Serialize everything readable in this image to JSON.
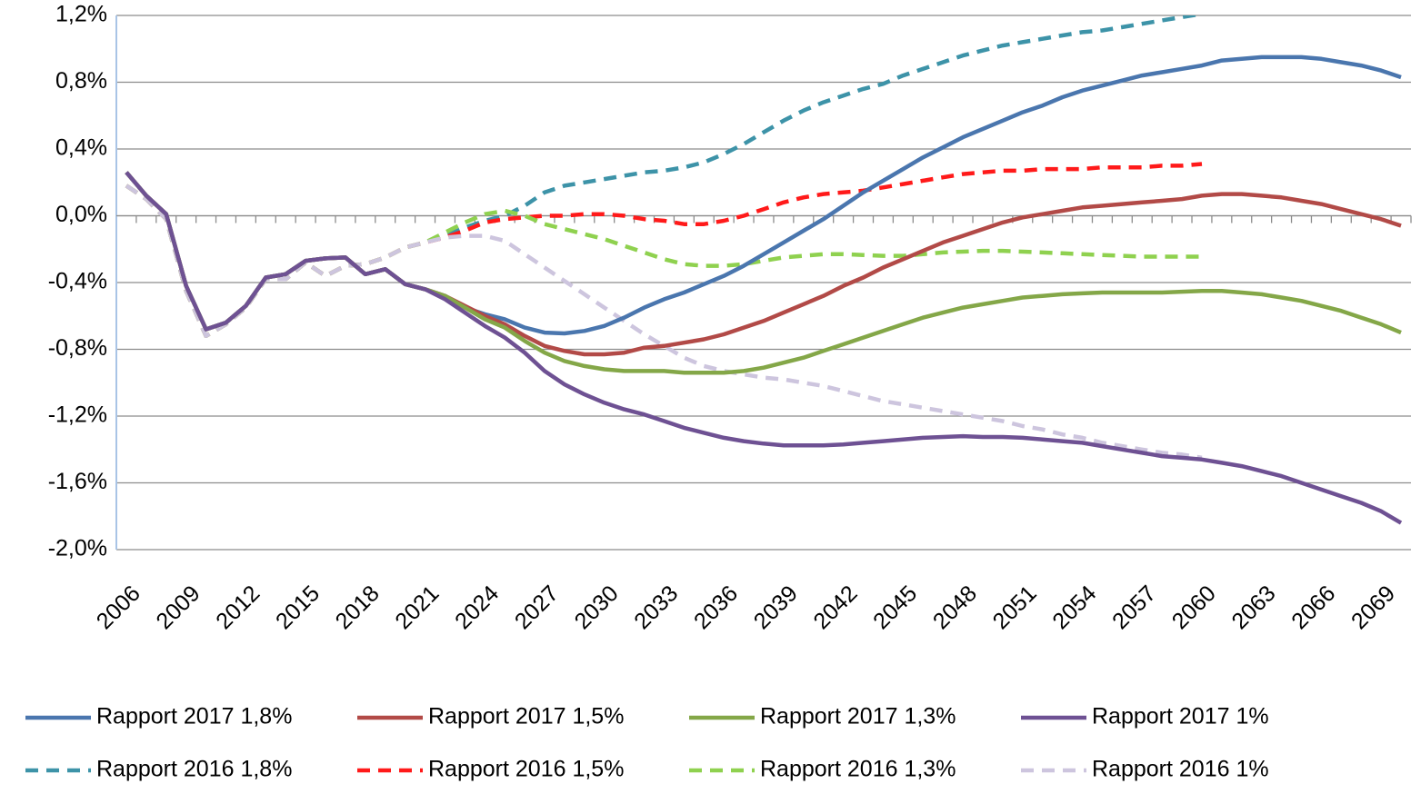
{
  "chart_data": {
    "type": "line",
    "x": [
      2006,
      2007,
      2008,
      2009,
      2010,
      2011,
      2012,
      2013,
      2014,
      2015,
      2016,
      2017,
      2018,
      2019,
      2020,
      2021,
      2022,
      2023,
      2024,
      2025,
      2026,
      2027,
      2028,
      2029,
      2030,
      2031,
      2032,
      2033,
      2034,
      2035,
      2036,
      2037,
      2038,
      2039,
      2040,
      2041,
      2042,
      2043,
      2044,
      2045,
      2046,
      2047,
      2048,
      2049,
      2050,
      2051,
      2052,
      2053,
      2054,
      2055,
      2056,
      2057,
      2058,
      2059,
      2060,
      2061,
      2062,
      2063,
      2064,
      2065,
      2066,
      2067,
      2068,
      2069,
      2070
    ],
    "xlim": [
      2005.5,
      2070.5
    ],
    "xticks": [
      2006,
      2009,
      2012,
      2015,
      2018,
      2021,
      2024,
      2027,
      2030,
      2033,
      2036,
      2039,
      2042,
      2045,
      2048,
      2051,
      2054,
      2057,
      2060,
      2063,
      2066,
      2069
    ],
    "ylim": [
      -2.0,
      1.2
    ],
    "yticks": [
      {
        "value": -2.0,
        "label": "-2,0%"
      },
      {
        "value": -1.6,
        "label": "-1,6%"
      },
      {
        "value": -1.2,
        "label": "-1,2%"
      },
      {
        "value": -0.8,
        "label": "-0,8%"
      },
      {
        "value": -0.4,
        "label": "-0,4%"
      },
      {
        "value": 0.0,
        "label": "0,0%"
      },
      {
        "value": 0.4,
        "label": "0,4%"
      },
      {
        "value": 0.8,
        "label": "0,8%"
      },
      {
        "value": 1.2,
        "label": "1,2%"
      }
    ],
    "grid": true,
    "series": [
      {
        "name": "Rapport 2017 1,8%",
        "color": "#4a76ae",
        "dashed": false,
        "values": [
          0.26,
          0.12,
          0.01,
          -0.42,
          -0.68,
          -0.64,
          -0.54,
          -0.37,
          -0.35,
          -0.27,
          -0.255,
          -0.25,
          -0.35,
          -0.32,
          -0.41,
          -0.44,
          -0.48,
          -0.55,
          -0.59,
          -0.62,
          -0.67,
          -0.7,
          -0.705,
          -0.69,
          -0.66,
          -0.61,
          -0.55,
          -0.5,
          -0.46,
          -0.41,
          -0.36,
          -0.3,
          -0.23,
          -0.16,
          -0.09,
          -0.02,
          0.06,
          0.14,
          0.21,
          0.28,
          0.35,
          0.41,
          0.47,
          0.52,
          0.57,
          0.62,
          0.66,
          0.71,
          0.75,
          0.78,
          0.81,
          0.84,
          0.86,
          0.88,
          0.9,
          0.93,
          0.94,
          0.95,
          0.95,
          0.95,
          0.94,
          0.92,
          0.9,
          0.87,
          0.83
        ]
      },
      {
        "name": "Rapport 2017 1,5%",
        "color": "#b24a47",
        "dashed": false,
        "values": [
          0.26,
          0.12,
          0.01,
          -0.42,
          -0.68,
          -0.64,
          -0.54,
          -0.37,
          -0.35,
          -0.27,
          -0.255,
          -0.25,
          -0.35,
          -0.32,
          -0.41,
          -0.44,
          -0.48,
          -0.54,
          -0.6,
          -0.65,
          -0.72,
          -0.78,
          -0.81,
          -0.83,
          -0.83,
          -0.82,
          -0.79,
          -0.78,
          -0.76,
          -0.74,
          -0.71,
          -0.67,
          -0.63,
          -0.58,
          -0.53,
          -0.48,
          -0.42,
          -0.37,
          -0.31,
          -0.26,
          -0.21,
          -0.16,
          -0.12,
          -0.08,
          -0.04,
          -0.01,
          0.01,
          0.03,
          0.05,
          0.06,
          0.07,
          0.08,
          0.09,
          0.1,
          0.12,
          0.13,
          0.13,
          0.12,
          0.11,
          0.09,
          0.07,
          0.04,
          0.01,
          -0.02,
          -0.06
        ]
      },
      {
        "name": "Rapport 2017 1,3%",
        "color": "#84a748",
        "dashed": false,
        "values": [
          0.26,
          0.12,
          0.01,
          -0.42,
          -0.68,
          -0.64,
          -0.54,
          -0.37,
          -0.35,
          -0.27,
          -0.255,
          -0.25,
          -0.35,
          -0.32,
          -0.41,
          -0.44,
          -0.48,
          -0.55,
          -0.62,
          -0.67,
          -0.75,
          -0.82,
          -0.87,
          -0.9,
          -0.92,
          -0.93,
          -0.93,
          -0.93,
          -0.94,
          -0.94,
          -0.94,
          -0.93,
          -0.91,
          -0.88,
          -0.85,
          -0.81,
          -0.77,
          -0.73,
          -0.69,
          -0.65,
          -0.61,
          -0.58,
          -0.55,
          -0.53,
          -0.51,
          -0.49,
          -0.48,
          -0.47,
          -0.465,
          -0.46,
          -0.46,
          -0.46,
          -0.46,
          -0.455,
          -0.45,
          -0.45,
          -0.46,
          -0.47,
          -0.49,
          -0.51,
          -0.54,
          -0.57,
          -0.61,
          -0.65,
          -0.7
        ]
      },
      {
        "name": "Rapport 2017 1%",
        "color": "#6e5193",
        "dashed": false,
        "values": [
          0.26,
          0.12,
          0.01,
          -0.42,
          -0.68,
          -0.64,
          -0.54,
          -0.37,
          -0.35,
          -0.27,
          -0.255,
          -0.25,
          -0.35,
          -0.32,
          -0.41,
          -0.44,
          -0.5,
          -0.58,
          -0.66,
          -0.73,
          -0.82,
          -0.93,
          -1.01,
          -1.07,
          -1.12,
          -1.16,
          -1.19,
          -1.23,
          -1.27,
          -1.3,
          -1.33,
          -1.35,
          -1.365,
          -1.375,
          -1.375,
          -1.375,
          -1.37,
          -1.36,
          -1.35,
          -1.34,
          -1.33,
          -1.325,
          -1.32,
          -1.325,
          -1.325,
          -1.33,
          -1.34,
          -1.35,
          -1.36,
          -1.38,
          -1.4,
          -1.42,
          -1.44,
          -1.45,
          -1.46,
          -1.48,
          -1.5,
          -1.53,
          -1.56,
          -1.6,
          -1.64,
          -1.68,
          -1.72,
          -1.77,
          -1.84
        ]
      },
      {
        "name": "Rapport 2016 1,8%",
        "color": "#3d93a8",
        "dashed": true,
        "values": [
          0.18,
          0.1,
          -0.02,
          -0.45,
          -0.72,
          -0.65,
          -0.55,
          -0.38,
          -0.38,
          -0.28,
          -0.36,
          -0.3,
          -0.29,
          -0.25,
          -0.19,
          -0.16,
          -0.12,
          -0.07,
          -0.03,
          0.0,
          0.06,
          0.14,
          0.18,
          0.2,
          0.22,
          0.24,
          0.26,
          0.27,
          0.29,
          0.32,
          0.37,
          0.43,
          0.5,
          0.57,
          0.63,
          0.68,
          0.72,
          0.76,
          0.79,
          0.84,
          0.88,
          0.92,
          0.96,
          0.99,
          1.02,
          1.04,
          1.06,
          1.08,
          1.1,
          1.11,
          1.13,
          1.15,
          1.17,
          1.19,
          1.21,
          null,
          null,
          null,
          null,
          null,
          null,
          null,
          null,
          null,
          null
        ]
      },
      {
        "name": "Rapport 2016 1,5%",
        "color": "#ff1a1a",
        "dashed": true,
        "values": [
          0.18,
          0.1,
          -0.02,
          -0.45,
          -0.72,
          -0.65,
          -0.55,
          -0.38,
          -0.38,
          -0.28,
          -0.36,
          -0.3,
          -0.29,
          -0.25,
          -0.19,
          -0.16,
          -0.13,
          -0.09,
          -0.04,
          -0.02,
          -0.01,
          0.0,
          0.0,
          0.01,
          0.01,
          0.0,
          -0.02,
          -0.03,
          -0.05,
          -0.05,
          -0.03,
          0.0,
          0.04,
          0.08,
          0.11,
          0.13,
          0.14,
          0.15,
          0.17,
          0.19,
          0.21,
          0.23,
          0.25,
          0.26,
          0.27,
          0.27,
          0.28,
          0.28,
          0.28,
          0.29,
          0.29,
          0.29,
          0.3,
          0.3,
          0.31,
          null,
          null,
          null,
          null,
          null,
          null,
          null,
          null,
          null,
          null
        ]
      },
      {
        "name": "Rapport 2016 1,3%",
        "color": "#8fd14f",
        "dashed": true,
        "values": [
          0.18,
          0.1,
          -0.02,
          -0.45,
          -0.72,
          -0.65,
          -0.55,
          -0.38,
          -0.38,
          -0.28,
          -0.36,
          -0.3,
          -0.29,
          -0.25,
          -0.19,
          -0.16,
          -0.1,
          -0.04,
          0.01,
          0.03,
          0.0,
          -0.05,
          -0.08,
          -0.11,
          -0.14,
          -0.18,
          -0.22,
          -0.26,
          -0.29,
          -0.3,
          -0.3,
          -0.29,
          -0.27,
          -0.25,
          -0.24,
          -0.23,
          -0.23,
          -0.235,
          -0.24,
          -0.24,
          -0.23,
          -0.22,
          -0.215,
          -0.21,
          -0.21,
          -0.215,
          -0.22,
          -0.225,
          -0.23,
          -0.235,
          -0.24,
          -0.245,
          -0.245,
          -0.245,
          -0.245,
          null,
          null,
          null,
          null,
          null,
          null,
          null,
          null,
          null,
          null
        ]
      },
      {
        "name": "Rapport 2016 1%",
        "color": "#cdc5de",
        "dashed": true,
        "values": [
          0.18,
          0.1,
          -0.02,
          -0.45,
          -0.72,
          -0.65,
          -0.55,
          -0.38,
          -0.38,
          -0.28,
          -0.36,
          -0.3,
          -0.29,
          -0.25,
          -0.19,
          -0.16,
          -0.13,
          -0.12,
          -0.12,
          -0.15,
          -0.23,
          -0.31,
          -0.39,
          -0.47,
          -0.55,
          -0.63,
          -0.71,
          -0.78,
          -0.85,
          -0.9,
          -0.93,
          -0.95,
          -0.97,
          -0.98,
          -1.0,
          -1.02,
          -1.05,
          -1.08,
          -1.11,
          -1.13,
          -1.15,
          -1.17,
          -1.19,
          -1.21,
          -1.23,
          -1.26,
          -1.28,
          -1.31,
          -1.33,
          -1.36,
          -1.38,
          -1.4,
          -1.42,
          -1.43,
          -1.45,
          null,
          null,
          null,
          null,
          null,
          null,
          null,
          null,
          null,
          null
        ]
      }
    ]
  }
}
